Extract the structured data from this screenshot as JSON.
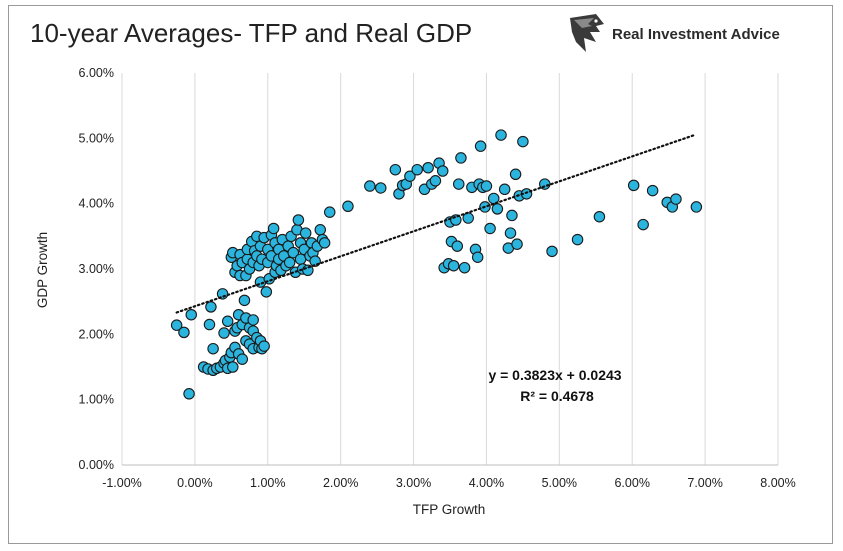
{
  "brand": {
    "name": "Real Investment Advice",
    "logo_icon": "eagle-head-icon"
  },
  "chart_data": {
    "type": "scatter",
    "title": "10-year Averages- TFP and Real GDP",
    "xlabel": "TFP Growth",
    "ylabel": "GDP Growth",
    "xlim": [
      -1.0,
      8.0
    ],
    "ylim": [
      0.0,
      6.0
    ],
    "x_ticks": [
      "-1.00%",
      "0.00%",
      "1.00%",
      "2.00%",
      "3.00%",
      "4.00%",
      "5.00%",
      "6.00%",
      "7.00%",
      "8.00%"
    ],
    "y_ticks": [
      "0.00%",
      "1.00%",
      "2.00%",
      "3.00%",
      "4.00%",
      "5.00%",
      "6.00%"
    ],
    "grid": "vertical",
    "marker_color": "#2bb5de",
    "marker_edge_color": "#1a1a1a",
    "trendline": {
      "slope": 0.3823,
      "intercept": 2.43,
      "x_range": [
        -0.25,
        6.85
      ],
      "style": "dotted"
    },
    "equation": "y = 0.3823x + 0.0243",
    "r_squared": "R² = 0.4678",
    "points": [
      [
        -0.25,
        2.14
      ],
      [
        -0.15,
        2.03
      ],
      [
        -0.08,
        1.09
      ],
      [
        -0.05,
        2.3
      ],
      [
        0.12,
        1.5
      ],
      [
        0.18,
        1.47
      ],
      [
        0.2,
        2.15
      ],
      [
        0.22,
        2.42
      ],
      [
        0.25,
        1.45
      ],
      [
        0.25,
        1.78
      ],
      [
        0.3,
        1.48
      ],
      [
        0.35,
        1.5
      ],
      [
        0.38,
        2.62
      ],
      [
        0.4,
        1.56
      ],
      [
        0.4,
        2.02
      ],
      [
        0.42,
        1.6
      ],
      [
        0.45,
        1.48
      ],
      [
        0.45,
        2.2
      ],
      [
        0.48,
        1.65
      ],
      [
        0.5,
        1.72
      ],
      [
        0.5,
        3.18
      ],
      [
        0.52,
        1.5
      ],
      [
        0.52,
        3.25
      ],
      [
        0.55,
        1.8
      ],
      [
        0.55,
        2.05
      ],
      [
        0.55,
        2.95
      ],
      [
        0.58,
        2.1
      ],
      [
        0.58,
        3.05
      ],
      [
        0.6,
        1.7
      ],
      [
        0.6,
        2.3
      ],
      [
        0.62,
        2.9
      ],
      [
        0.62,
        3.22
      ],
      [
        0.65,
        1.62
      ],
      [
        0.65,
        2.15
      ],
      [
        0.65,
        3.1
      ],
      [
        0.68,
        2.52
      ],
      [
        0.7,
        1.9
      ],
      [
        0.7,
        2.25
      ],
      [
        0.7,
        2.9
      ],
      [
        0.72,
        3.15
      ],
      [
        0.72,
        3.3
      ],
      [
        0.75,
        1.85
      ],
      [
        0.75,
        2.1
      ],
      [
        0.75,
        3.0
      ],
      [
        0.78,
        3.42
      ],
      [
        0.8,
        1.78
      ],
      [
        0.8,
        2.05
      ],
      [
        0.8,
        2.22
      ],
      [
        0.8,
        3.1
      ],
      [
        0.82,
        3.28
      ],
      [
        0.85,
        1.95
      ],
      [
        0.85,
        3.2
      ],
      [
        0.85,
        3.5
      ],
      [
        0.88,
        1.8
      ],
      [
        0.88,
        3.05
      ],
      [
        0.9,
        1.9
      ],
      [
        0.9,
        2.8
      ],
      [
        0.9,
        3.35
      ],
      [
        0.92,
        1.78
      ],
      [
        0.92,
        3.15
      ],
      [
        0.95,
        1.82
      ],
      [
        0.95,
        3.48
      ],
      [
        0.98,
        2.65
      ],
      [
        1.0,
        3.1
      ],
      [
        1.0,
        3.3
      ],
      [
        1.02,
        2.85
      ],
      [
        1.05,
        3.2
      ],
      [
        1.05,
        3.52
      ],
      [
        1.08,
        3.62
      ],
      [
        1.1,
        2.95
      ],
      [
        1.1,
        3.4
      ],
      [
        1.12,
        3.05
      ],
      [
        1.15,
        3.3
      ],
      [
        1.15,
        3.15
      ],
      [
        1.18,
        2.98
      ],
      [
        1.2,
        3.45
      ],
      [
        1.22,
        3.2
      ],
      [
        1.25,
        3.05
      ],
      [
        1.28,
        3.35
      ],
      [
        1.3,
        3.1
      ],
      [
        1.32,
        3.5
      ],
      [
        1.35,
        3.25
      ],
      [
        1.38,
        2.95
      ],
      [
        1.4,
        3.6
      ],
      [
        1.42,
        3.75
      ],
      [
        1.45,
        3.4
      ],
      [
        1.45,
        3.15
      ],
      [
        1.48,
        3.0
      ],
      [
        1.5,
        3.3
      ],
      [
        1.52,
        3.55
      ],
      [
        1.55,
        2.98
      ],
      [
        1.58,
        3.2
      ],
      [
        1.6,
        3.4
      ],
      [
        1.62,
        3.25
      ],
      [
        1.65,
        3.12
      ],
      [
        1.68,
        3.35
      ],
      [
        1.72,
        3.6
      ],
      [
        1.75,
        3.45
      ],
      [
        1.78,
        3.4
      ],
      [
        1.85,
        3.87
      ],
      [
        2.1,
        3.96
      ],
      [
        2.4,
        4.27
      ],
      [
        2.55,
        4.24
      ],
      [
        2.75,
        4.52
      ],
      [
        2.8,
        4.15
      ],
      [
        2.85,
        4.28
      ],
      [
        2.9,
        4.3
      ],
      [
        2.95,
        4.42
      ],
      [
        3.05,
        4.52
      ],
      [
        3.15,
        4.22
      ],
      [
        3.2,
        4.55
      ],
      [
        3.25,
        4.3
      ],
      [
        3.3,
        4.35
      ],
      [
        3.35,
        4.62
      ],
      [
        3.4,
        4.5
      ],
      [
        3.42,
        3.02
      ],
      [
        3.48,
        3.08
      ],
      [
        3.5,
        3.72
      ],
      [
        3.52,
        3.42
      ],
      [
        3.55,
        3.05
      ],
      [
        3.58,
        3.75
      ],
      [
        3.6,
        3.35
      ],
      [
        3.62,
        4.3
      ],
      [
        3.65,
        4.7
      ],
      [
        3.7,
        3.02
      ],
      [
        3.75,
        3.78
      ],
      [
        3.8,
        4.25
      ],
      [
        3.85,
        3.3
      ],
      [
        3.88,
        3.18
      ],
      [
        3.9,
        4.3
      ],
      [
        3.92,
        4.88
      ],
      [
        3.95,
        4.25
      ],
      [
        3.98,
        3.95
      ],
      [
        4.0,
        4.27
      ],
      [
        4.05,
        3.62
      ],
      [
        4.1,
        4.08
      ],
      [
        4.15,
        3.92
      ],
      [
        4.2,
        5.05
      ],
      [
        4.25,
        4.22
      ],
      [
        4.3,
        3.32
      ],
      [
        4.33,
        3.55
      ],
      [
        4.35,
        3.82
      ],
      [
        4.4,
        4.45
      ],
      [
        4.42,
        3.38
      ],
      [
        4.45,
        4.12
      ],
      [
        4.5,
        4.95
      ],
      [
        4.55,
        4.15
      ],
      [
        4.8,
        4.3
      ],
      [
        4.9,
        3.27
      ],
      [
        5.25,
        3.45
      ],
      [
        5.55,
        3.8
      ],
      [
        6.02,
        4.28
      ],
      [
        6.15,
        3.68
      ],
      [
        6.28,
        4.2
      ],
      [
        6.48,
        4.02
      ],
      [
        6.55,
        3.95
      ],
      [
        6.6,
        4.07
      ],
      [
        6.88,
        3.95
      ]
    ]
  }
}
